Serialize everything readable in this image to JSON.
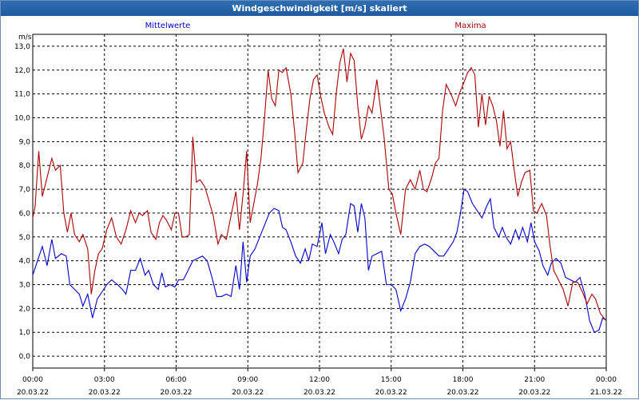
{
  "window": {
    "title": "Windgeschwindigkeit [m/s] skaliert"
  },
  "chart_data": {
    "type": "line",
    "title": "Windgeschwindigkeit [m/s] skaliert",
    "ylabel": "m/s",
    "ylim": [
      -0.5,
      13.5
    ],
    "xlim": [
      0,
      24
    ],
    "y_ticks": [
      "0,0",
      "1,0",
      "2,0",
      "3,0",
      "4,0",
      "5,0",
      "6,0",
      "7,0",
      "8,0",
      "9,0",
      "10,0",
      "11,0",
      "12,0",
      "13,0"
    ],
    "x_ticks": [
      {
        "time": "00:00",
        "date": "20.03.22"
      },
      {
        "time": "03:00",
        "date": "20.03.22"
      },
      {
        "time": "06:00",
        "date": "20.03.22"
      },
      {
        "time": "09:00",
        "date": "20.03.22"
      },
      {
        "time": "12:00",
        "date": "20.03.22"
      },
      {
        "time": "15:00",
        "date": "20.03.22"
      },
      {
        "time": "18:00",
        "date": "20.03.22"
      },
      {
        "time": "21:00",
        "date": "20.03.22"
      },
      {
        "time": "00:00",
        "date": "21.03.22"
      }
    ],
    "grid": true,
    "x_unit": "hours since 20.03.22 00:00",
    "series": [
      {
        "name": "Mittelwerte",
        "color": "#0000cc",
        "legend_position": "top-center-left",
        "points": [
          [
            0.0,
            3.4
          ],
          [
            0.2,
            4.0
          ],
          [
            0.4,
            4.6
          ],
          [
            0.6,
            3.8
          ],
          [
            0.8,
            4.9
          ],
          [
            0.95,
            4.1
          ],
          [
            1.2,
            4.3
          ],
          [
            1.4,
            4.2
          ],
          [
            1.55,
            3.0
          ],
          [
            1.75,
            2.8
          ],
          [
            1.95,
            2.6
          ],
          [
            2.1,
            2.1
          ],
          [
            2.3,
            2.6
          ],
          [
            2.5,
            1.6
          ],
          [
            2.7,
            2.4
          ],
          [
            2.9,
            2.7
          ],
          [
            3.1,
            3.0
          ],
          [
            3.3,
            3.2
          ],
          [
            3.55,
            3.0
          ],
          [
            3.75,
            2.8
          ],
          [
            3.9,
            2.6
          ],
          [
            4.1,
            3.6
          ],
          [
            4.3,
            3.6
          ],
          [
            4.5,
            4.1
          ],
          [
            4.7,
            3.4
          ],
          [
            4.85,
            3.6
          ],
          [
            5.05,
            3.0
          ],
          [
            5.25,
            2.8
          ],
          [
            5.4,
            3.5
          ],
          [
            5.55,
            2.9
          ],
          [
            5.75,
            3.0
          ],
          [
            5.95,
            2.9
          ],
          [
            6.1,
            3.2
          ],
          [
            6.3,
            3.2
          ],
          [
            6.5,
            3.6
          ],
          [
            6.7,
            4.0
          ],
          [
            6.9,
            4.1
          ],
          [
            7.1,
            4.2
          ],
          [
            7.3,
            4.0
          ],
          [
            7.5,
            3.3
          ],
          [
            7.7,
            2.5
          ],
          [
            7.9,
            2.5
          ],
          [
            8.1,
            2.6
          ],
          [
            8.3,
            2.5
          ],
          [
            8.5,
            3.8
          ],
          [
            8.65,
            2.8
          ],
          [
            8.8,
            4.8
          ],
          [
            8.95,
            3.1
          ],
          [
            9.1,
            4.2
          ],
          [
            9.3,
            4.5
          ],
          [
            9.5,
            5.0
          ],
          [
            9.7,
            5.5
          ],
          [
            9.9,
            6.0
          ],
          [
            10.1,
            6.2
          ],
          [
            10.3,
            6.1
          ],
          [
            10.45,
            5.4
          ],
          [
            10.6,
            5.3
          ],
          [
            10.8,
            4.8
          ],
          [
            11.0,
            4.2
          ],
          [
            11.2,
            3.9
          ],
          [
            11.4,
            4.5
          ],
          [
            11.55,
            4.0
          ],
          [
            11.7,
            4.7
          ],
          [
            11.9,
            4.6
          ],
          [
            12.1,
            5.6
          ],
          [
            12.25,
            4.3
          ],
          [
            12.45,
            5.1
          ],
          [
            12.6,
            4.8
          ],
          [
            12.8,
            4.3
          ],
          [
            12.95,
            4.9
          ],
          [
            13.1,
            5.1
          ],
          [
            13.3,
            6.4
          ],
          [
            13.45,
            6.3
          ],
          [
            13.6,
            5.2
          ],
          [
            13.75,
            6.4
          ],
          [
            13.9,
            5.8
          ],
          [
            14.05,
            3.6
          ],
          [
            14.2,
            4.2
          ],
          [
            14.4,
            4.3
          ],
          [
            14.6,
            4.4
          ],
          [
            14.8,
            3.0
          ],
          [
            15.0,
            3.0
          ],
          [
            15.2,
            2.8
          ],
          [
            15.4,
            1.9
          ],
          [
            15.6,
            2.4
          ],
          [
            15.8,
            3.1
          ],
          [
            16.0,
            4.3
          ],
          [
            16.2,
            4.6
          ],
          [
            16.4,
            4.7
          ],
          [
            16.6,
            4.6
          ],
          [
            16.8,
            4.4
          ],
          [
            17.0,
            4.2
          ],
          [
            17.2,
            4.2
          ],
          [
            17.4,
            4.5
          ],
          [
            17.6,
            4.8
          ],
          [
            17.75,
            5.2
          ],
          [
            17.9,
            6.0
          ],
          [
            18.05,
            7.0
          ],
          [
            18.2,
            6.9
          ],
          [
            18.4,
            6.4
          ],
          [
            18.6,
            6.1
          ],
          [
            18.8,
            5.8
          ],
          [
            19.0,
            6.3
          ],
          [
            19.15,
            6.6
          ],
          [
            19.3,
            5.4
          ],
          [
            19.5,
            5.0
          ],
          [
            19.65,
            5.4
          ],
          [
            19.8,
            5.0
          ],
          [
            20.0,
            4.7
          ],
          [
            20.2,
            5.3
          ],
          [
            20.35,
            4.9
          ],
          [
            20.5,
            5.4
          ],
          [
            20.7,
            4.8
          ],
          [
            20.85,
            5.6
          ],
          [
            21.0,
            4.8
          ],
          [
            21.2,
            4.4
          ],
          [
            21.35,
            3.8
          ],
          [
            21.55,
            3.4
          ],
          [
            21.7,
            3.9
          ],
          [
            21.9,
            4.1
          ],
          [
            22.1,
            3.9
          ],
          [
            22.3,
            3.3
          ],
          [
            22.5,
            3.2
          ],
          [
            22.7,
            3.1
          ],
          [
            22.9,
            3.3
          ],
          [
            23.1,
            2.6
          ],
          [
            23.3,
            1.5
          ],
          [
            23.5,
            1.0
          ],
          [
            23.7,
            1.1
          ],
          [
            23.85,
            1.6
          ],
          [
            24.0,
            1.5
          ]
        ]
      },
      {
        "name": "Maxima",
        "color": "#aa0000",
        "legend_position": "top-center-right",
        "points": [
          [
            0.0,
            5.8
          ],
          [
            0.1,
            6.3
          ],
          [
            0.25,
            8.6
          ],
          [
            0.4,
            6.7
          ],
          [
            0.6,
            7.5
          ],
          [
            0.8,
            8.3
          ],
          [
            0.95,
            7.8
          ],
          [
            1.15,
            8.0
          ],
          [
            1.3,
            6.0
          ],
          [
            1.45,
            5.2
          ],
          [
            1.6,
            6.0
          ],
          [
            1.75,
            5.1
          ],
          [
            1.95,
            4.8
          ],
          [
            2.1,
            5.1
          ],
          [
            2.3,
            4.5
          ],
          [
            2.45,
            2.6
          ],
          [
            2.6,
            3.6
          ],
          [
            2.75,
            4.3
          ],
          [
            2.9,
            4.5
          ],
          [
            3.1,
            5.3
          ],
          [
            3.3,
            5.8
          ],
          [
            3.5,
            5.0
          ],
          [
            3.7,
            4.7
          ],
          [
            3.9,
            5.3
          ],
          [
            4.1,
            6.1
          ],
          [
            4.3,
            5.6
          ],
          [
            4.45,
            6.0
          ],
          [
            4.6,
            5.9
          ],
          [
            4.8,
            6.1
          ],
          [
            4.95,
            5.2
          ],
          [
            5.15,
            4.9
          ],
          [
            5.3,
            5.6
          ],
          [
            5.45,
            5.9
          ],
          [
            5.6,
            5.7
          ],
          [
            5.8,
            5.3
          ],
          [
            5.95,
            6.0
          ],
          [
            6.1,
            6.0
          ],
          [
            6.25,
            5.0
          ],
          [
            6.4,
            5.0
          ],
          [
            6.55,
            5.1
          ],
          [
            6.7,
            9.2
          ],
          [
            6.85,
            7.3
          ],
          [
            7.0,
            7.4
          ],
          [
            7.2,
            7.1
          ],
          [
            7.35,
            6.6
          ],
          [
            7.55,
            5.9
          ],
          [
            7.75,
            4.7
          ],
          [
            7.9,
            5.1
          ],
          [
            8.1,
            4.9
          ],
          [
            8.3,
            5.9
          ],
          [
            8.5,
            6.9
          ],
          [
            8.65,
            5.3
          ],
          [
            8.8,
            6.8
          ],
          [
            8.95,
            8.6
          ],
          [
            9.1,
            5.6
          ],
          [
            9.25,
            6.4
          ],
          [
            9.4,
            7.2
          ],
          [
            9.55,
            8.3
          ],
          [
            9.7,
            10.0
          ],
          [
            9.85,
            12.0
          ],
          [
            10.0,
            10.8
          ],
          [
            10.15,
            10.5
          ],
          [
            10.3,
            12.0
          ],
          [
            10.45,
            11.9
          ],
          [
            10.6,
            12.1
          ],
          [
            10.8,
            11.0
          ],
          [
            10.95,
            9.5
          ],
          [
            11.1,
            7.7
          ],
          [
            11.3,
            8.1
          ],
          [
            11.45,
            9.5
          ],
          [
            11.6,
            10.8
          ],
          [
            11.75,
            11.6
          ],
          [
            11.9,
            11.8
          ],
          [
            12.05,
            10.9
          ],
          [
            12.2,
            10.2
          ],
          [
            12.4,
            9.6
          ],
          [
            12.55,
            9.3
          ],
          [
            12.7,
            11.0
          ],
          [
            12.85,
            12.3
          ],
          [
            13.0,
            12.9
          ],
          [
            13.15,
            11.5
          ],
          [
            13.3,
            12.7
          ],
          [
            13.45,
            12.4
          ],
          [
            13.6,
            10.5
          ],
          [
            13.75,
            9.1
          ],
          [
            13.9,
            9.6
          ],
          [
            14.05,
            10.5
          ],
          [
            14.2,
            10.2
          ],
          [
            14.4,
            11.6
          ],
          [
            14.55,
            10.4
          ],
          [
            14.7,
            9.2
          ],
          [
            14.9,
            7.0
          ],
          [
            15.05,
            6.8
          ],
          [
            15.2,
            6.0
          ],
          [
            15.4,
            5.1
          ],
          [
            15.6,
            7.0
          ],
          [
            15.8,
            7.4
          ],
          [
            16.0,
            7.0
          ],
          [
            16.2,
            7.8
          ],
          [
            16.35,
            7.0
          ],
          [
            16.5,
            6.9
          ],
          [
            16.7,
            7.5
          ],
          [
            16.85,
            8.1
          ],
          [
            17.0,
            8.3
          ],
          [
            17.15,
            10.3
          ],
          [
            17.3,
            11.4
          ],
          [
            17.5,
            11.0
          ],
          [
            17.7,
            10.5
          ],
          [
            17.85,
            11.0
          ],
          [
            18.05,
            11.5
          ],
          [
            18.2,
            11.9
          ],
          [
            18.35,
            12.1
          ],
          [
            18.5,
            11.8
          ],
          [
            18.65,
            9.6
          ],
          [
            18.8,
            11.0
          ],
          [
            18.95,
            9.7
          ],
          [
            19.1,
            10.9
          ],
          [
            19.25,
            10.5
          ],
          [
            19.4,
            9.9
          ],
          [
            19.55,
            8.8
          ],
          [
            19.7,
            10.3
          ],
          [
            19.85,
            8.7
          ],
          [
            20.0,
            9.0
          ],
          [
            20.15,
            7.8
          ],
          [
            20.3,
            6.7
          ],
          [
            20.45,
            7.3
          ],
          [
            20.6,
            7.7
          ],
          [
            20.8,
            7.8
          ],
          [
            20.95,
            6.1
          ],
          [
            21.1,
            6.0
          ],
          [
            21.3,
            6.4
          ],
          [
            21.5,
            5.9
          ],
          [
            21.65,
            4.6
          ],
          [
            21.8,
            3.6
          ],
          [
            22.0,
            3.2
          ],
          [
            22.2,
            2.8
          ],
          [
            22.4,
            2.1
          ],
          [
            22.6,
            3.1
          ],
          [
            22.8,
            3.1
          ],
          [
            23.0,
            2.7
          ],
          [
            23.2,
            2.2
          ],
          [
            23.4,
            2.6
          ],
          [
            23.55,
            2.4
          ],
          [
            23.75,
            1.8
          ],
          [
            23.9,
            1.6
          ],
          [
            24.0,
            1.5
          ]
        ]
      }
    ]
  }
}
